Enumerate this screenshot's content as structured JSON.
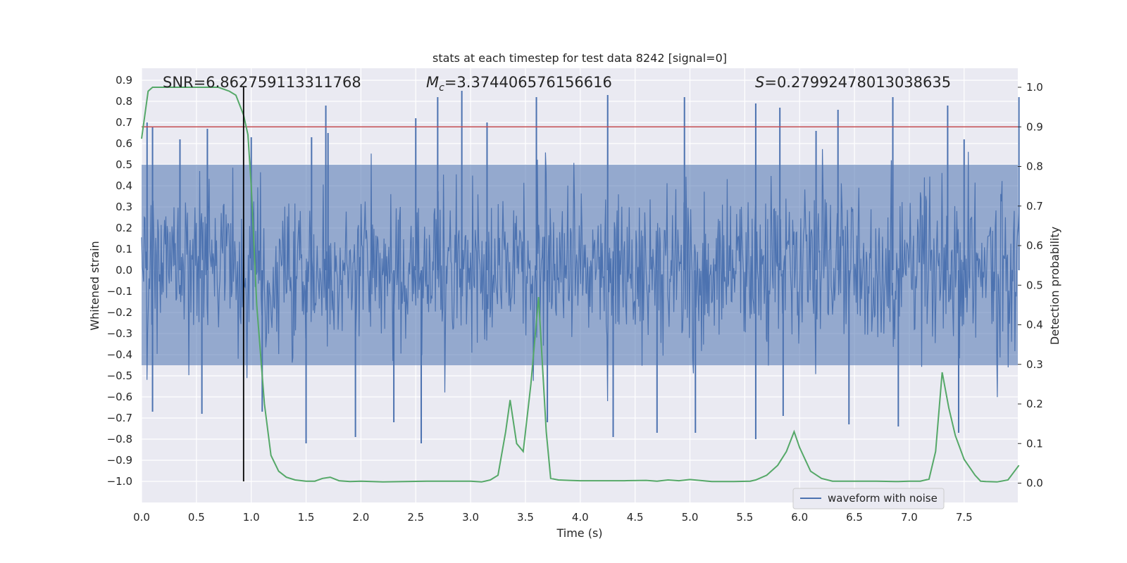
{
  "chart_data": {
    "type": "line",
    "title": "stats at each timestep for test data 8242 [signal=0]",
    "xlabel": "Time (s)",
    "ylabel": "Whitened strain",
    "y2label": "Detection probability",
    "xlim": [
      0,
      8.0
    ],
    "ylim": [
      -1.09,
      0.96
    ],
    "y2lim": [
      -0.045,
      1.04
    ],
    "xticks": [
      "0.0",
      "0.5",
      "1.0",
      "1.5",
      "2.0",
      "2.5",
      "3.0",
      "3.5",
      "4.0",
      "4.5",
      "5.0",
      "5.5",
      "6.0",
      "6.5",
      "7.0",
      "7.5"
    ],
    "yticks": [
      "0.9",
      "0.8",
      "0.7",
      "0.6",
      "0.5",
      "0.4",
      "0.3",
      "0.2",
      "0.1",
      "0.0",
      "−0.1",
      "−0.2",
      "−0.3",
      "−0.4",
      "−0.5",
      "−0.6",
      "−0.7",
      "−0.8",
      "−0.9",
      "−1.0"
    ],
    "y2ticks": [
      "1.0",
      "0.9",
      "0.8",
      "0.7",
      "0.6",
      "0.5",
      "0.4",
      "0.3",
      "0.2",
      "0.1",
      "0.0"
    ],
    "grid": true,
    "legend": {
      "entries": [
        "waveform with noise"
      ],
      "placement": "lower right"
    },
    "annotations": {
      "snr": "SNR=6.862759113311768",
      "mc_symbol": "M",
      "mc_sub": "c",
      "mc_value": "=3.374406576156616",
      "s_symbol": "S",
      "s_value": "=0.27992478013038635"
    },
    "series": [
      {
        "name": "waveform with noise",
        "color": "#4c72b0",
        "kind": "noise",
        "envelope_typical": [
          -0.45,
          0.5
        ],
        "peaks_high": [
          [
            0.05,
            0.7
          ],
          [
            0.1,
            0.68
          ],
          [
            0.35,
            0.62
          ],
          [
            0.6,
            0.67
          ],
          [
            1.0,
            0.63
          ],
          [
            1.55,
            0.63
          ],
          [
            1.7,
            0.65
          ],
          [
            1.68,
            0.78
          ],
          [
            2.5,
            0.72
          ],
          [
            2.7,
            0.82
          ],
          [
            2.92,
            0.85
          ],
          [
            3.15,
            0.7
          ],
          [
            3.6,
            0.82
          ],
          [
            4.25,
            0.83
          ],
          [
            4.95,
            0.82
          ],
          [
            5.6,
            0.79
          ],
          [
            5.82,
            0.77
          ],
          [
            6.15,
            0.66
          ],
          [
            6.35,
            0.76
          ],
          [
            6.85,
            0.82
          ],
          [
            7.35,
            0.78
          ],
          [
            7.5,
            0.62
          ],
          [
            8.0,
            0.82
          ]
        ],
        "peaks_low": [
          [
            0.1,
            -0.67
          ],
          [
            0.55,
            -0.68
          ],
          [
            1.1,
            -0.67
          ],
          [
            1.5,
            -0.82
          ],
          [
            1.95,
            -0.79
          ],
          [
            2.55,
            -0.82
          ],
          [
            2.3,
            -0.72
          ],
          [
            3.7,
            -0.72
          ],
          [
            4.3,
            -0.79
          ],
          [
            4.7,
            -0.77
          ],
          [
            5.05,
            -0.77
          ],
          [
            5.6,
            -0.8
          ],
          [
            5.85,
            -0.69
          ],
          [
            6.45,
            -0.73
          ],
          [
            6.9,
            -0.74
          ],
          [
            7.45,
            -0.77
          ]
        ]
      },
      {
        "name": "",
        "color": "#55a868",
        "axis": "right",
        "x": [
          0.0,
          0.06,
          0.1,
          0.2,
          0.4,
          0.6,
          0.7,
          0.8,
          0.86,
          0.93,
          0.97,
          1.0,
          1.05,
          1.12,
          1.18,
          1.25,
          1.32,
          1.4,
          1.5,
          1.58,
          1.65,
          1.72,
          1.8,
          1.9,
          2.0,
          2.2,
          2.4,
          2.6,
          2.8,
          3.0,
          3.1,
          3.18,
          3.25,
          3.32,
          3.36,
          3.42,
          3.48,
          3.55,
          3.62,
          3.69,
          3.73,
          3.8,
          3.9,
          4.0,
          4.2,
          4.4,
          4.6,
          4.7,
          4.8,
          4.9,
          5.0,
          5.2,
          5.4,
          5.55,
          5.6,
          5.7,
          5.8,
          5.88,
          5.95,
          6.0,
          6.05,
          6.1,
          6.2,
          6.3,
          6.5,
          6.7,
          6.9,
          7.0,
          7.1,
          7.18,
          7.24,
          7.3,
          7.36,
          7.42,
          7.5,
          7.6,
          7.65,
          7.7,
          7.8,
          7.9,
          8.0
        ],
        "values": [
          0.87,
          0.99,
          1.0,
          1.0,
          1.0,
          1.0,
          1.0,
          0.99,
          0.98,
          0.93,
          0.88,
          0.75,
          0.45,
          0.2,
          0.07,
          0.03,
          0.015,
          0.008,
          0.005,
          0.005,
          0.012,
          0.015,
          0.006,
          0.004,
          0.005,
          0.003,
          0.004,
          0.005,
          0.005,
          0.005,
          0.003,
          0.008,
          0.02,
          0.13,
          0.21,
          0.1,
          0.08,
          0.25,
          0.47,
          0.13,
          0.012,
          0.008,
          0.007,
          0.006,
          0.006,
          0.006,
          0.007,
          0.005,
          0.008,
          0.006,
          0.009,
          0.004,
          0.004,
          0.005,
          0.008,
          0.02,
          0.045,
          0.08,
          0.13,
          0.09,
          0.06,
          0.03,
          0.012,
          0.005,
          0.005,
          0.005,
          0.004,
          0.005,
          0.005,
          0.01,
          0.08,
          0.28,
          0.19,
          0.12,
          0.06,
          0.02,
          0.005,
          0.004,
          0.003,
          0.008,
          0.045
        ]
      }
    ],
    "hlines": [
      {
        "y2": 0.9,
        "color": "#c44e52"
      }
    ],
    "vlines": [
      {
        "x": 0.93,
        "color": "#000000",
        "y_from": -1.0,
        "y_to": 0.87
      }
    ]
  }
}
